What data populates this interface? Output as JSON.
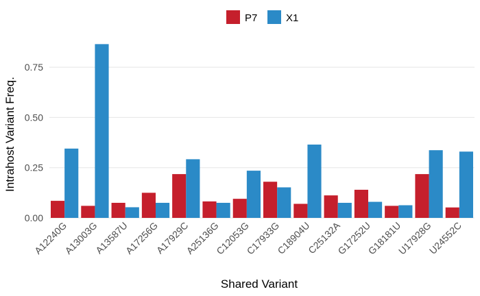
{
  "chart_data": {
    "type": "bar",
    "xlabel": "Shared Variant",
    "ylabel": "Intrahost Variant Freq.",
    "ylim": [
      0,
      0.88
    ],
    "yticks": [
      0.0,
      0.25,
      0.5,
      0.75
    ],
    "ytick_labels": [
      "0.00",
      "0.25",
      "0.50",
      "0.75"
    ],
    "grid": "horizontal",
    "legend_position": "top",
    "categories": [
      "A12240G",
      "A13003G",
      "A13587U",
      "A17256G",
      "A17929C",
      "A25136G",
      "C12053G",
      "C17933G",
      "C18904U",
      "C25132A",
      "G17252U",
      "G18181U",
      "U17928G",
      "U24552C"
    ],
    "series": [
      {
        "name": "P7",
        "color": "#C51F2C",
        "values": [
          0.085,
          0.06,
          0.075,
          0.125,
          0.218,
          0.082,
          0.095,
          0.18,
          0.07,
          0.112,
          0.14,
          0.06,
          0.218,
          0.052
        ]
      },
      {
        "name": "X1",
        "color": "#2B8AC7",
        "values": [
          0.345,
          0.865,
          0.053,
          0.075,
          0.292,
          0.075,
          0.235,
          0.152,
          0.365,
          0.075,
          0.08,
          0.063,
          0.337,
          0.33
        ]
      }
    ]
  }
}
